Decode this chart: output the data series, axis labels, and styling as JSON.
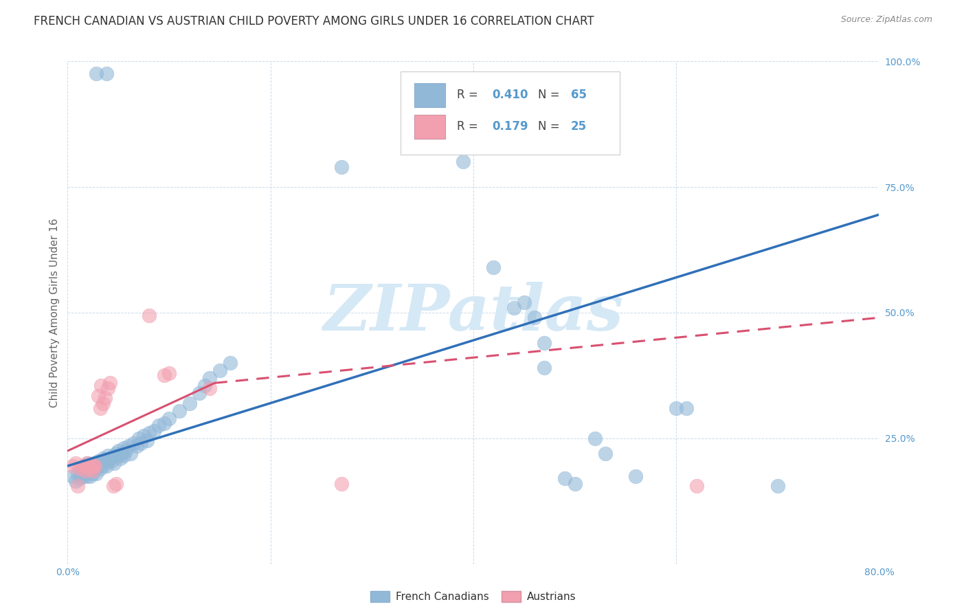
{
  "title": "FRENCH CANADIAN VS AUSTRIAN CHILD POVERTY AMONG GIRLS UNDER 16 CORRELATION CHART",
  "source": "Source: ZipAtlas.com",
  "ylabel": "Child Poverty Among Girls Under 16",
  "xlim": [
    0.0,
    0.8
  ],
  "ylim": [
    0.0,
    1.0
  ],
  "xticks": [
    0.0,
    0.2,
    0.4,
    0.6,
    0.8
  ],
  "xtick_labels": [
    "0.0%",
    "",
    "",
    "",
    "80.0%"
  ],
  "ytick_labels": [
    "",
    "25.0%",
    "50.0%",
    "75.0%",
    "100.0%"
  ],
  "yticks": [
    0.0,
    0.25,
    0.5,
    0.75,
    1.0
  ],
  "legend_label_blue": "French Canadians",
  "legend_label_pink": "Austrians",
  "blue_color": "#92b8d8",
  "pink_color": "#f2a0b0",
  "line_blue_color": "#3070b8",
  "line_pink_color": "#d85070",
  "title_color": "#333333",
  "axis_color": "#5599cc",
  "watermark": "ZIPatlas",
  "blue_points": [
    [
      0.005,
      0.175
    ],
    [
      0.008,
      0.165
    ],
    [
      0.01,
      0.18
    ],
    [
      0.012,
      0.17
    ],
    [
      0.013,
      0.185
    ],
    [
      0.015,
      0.175
    ],
    [
      0.015,
      0.19
    ],
    [
      0.017,
      0.18
    ],
    [
      0.018,
      0.19
    ],
    [
      0.019,
      0.175
    ],
    [
      0.02,
      0.185
    ],
    [
      0.02,
      0.2
    ],
    [
      0.022,
      0.175
    ],
    [
      0.022,
      0.185
    ],
    [
      0.023,
      0.195
    ],
    [
      0.025,
      0.18
    ],
    [
      0.025,
      0.19
    ],
    [
      0.026,
      0.2
    ],
    [
      0.027,
      0.19
    ],
    [
      0.028,
      0.18
    ],
    [
      0.03,
      0.195
    ],
    [
      0.03,
      0.205
    ],
    [
      0.032,
      0.19
    ],
    [
      0.033,
      0.2
    ],
    [
      0.035,
      0.195
    ],
    [
      0.035,
      0.21
    ],
    [
      0.037,
      0.205
    ],
    [
      0.038,
      0.195
    ],
    [
      0.04,
      0.205
    ],
    [
      0.04,
      0.215
    ],
    [
      0.042,
      0.21
    ],
    [
      0.043,
      0.205
    ],
    [
      0.045,
      0.215
    ],
    [
      0.046,
      0.2
    ],
    [
      0.048,
      0.22
    ],
    [
      0.05,
      0.215
    ],
    [
      0.05,
      0.225
    ],
    [
      0.052,
      0.21
    ],
    [
      0.053,
      0.22
    ],
    [
      0.055,
      0.215
    ],
    [
      0.055,
      0.23
    ],
    [
      0.057,
      0.225
    ],
    [
      0.06,
      0.235
    ],
    [
      0.062,
      0.22
    ],
    [
      0.065,
      0.24
    ],
    [
      0.068,
      0.235
    ],
    [
      0.07,
      0.25
    ],
    [
      0.072,
      0.24
    ],
    [
      0.075,
      0.255
    ],
    [
      0.078,
      0.245
    ],
    [
      0.08,
      0.26
    ],
    [
      0.085,
      0.265
    ],
    [
      0.09,
      0.275
    ],
    [
      0.095,
      0.28
    ],
    [
      0.1,
      0.29
    ],
    [
      0.11,
      0.305
    ],
    [
      0.12,
      0.32
    ],
    [
      0.13,
      0.34
    ],
    [
      0.135,
      0.355
    ],
    [
      0.14,
      0.37
    ],
    [
      0.15,
      0.385
    ],
    [
      0.16,
      0.4
    ],
    [
      0.028,
      0.975
    ],
    [
      0.038,
      0.975
    ],
    [
      0.27,
      0.79
    ],
    [
      0.39,
      0.8
    ],
    [
      0.42,
      0.59
    ],
    [
      0.44,
      0.51
    ],
    [
      0.45,
      0.52
    ],
    [
      0.46,
      0.49
    ],
    [
      0.47,
      0.44
    ],
    [
      0.47,
      0.39
    ],
    [
      0.49,
      0.17
    ],
    [
      0.5,
      0.16
    ],
    [
      0.52,
      0.25
    ],
    [
      0.53,
      0.22
    ],
    [
      0.56,
      0.175
    ],
    [
      0.6,
      0.31
    ],
    [
      0.61,
      0.31
    ],
    [
      0.7,
      0.155
    ]
  ],
  "pink_points": [
    [
      0.005,
      0.195
    ],
    [
      0.008,
      0.2
    ],
    [
      0.01,
      0.155
    ],
    [
      0.012,
      0.19
    ],
    [
      0.015,
      0.195
    ],
    [
      0.017,
      0.185
    ],
    [
      0.018,
      0.195
    ],
    [
      0.019,
      0.2
    ],
    [
      0.02,
      0.195
    ],
    [
      0.022,
      0.19
    ],
    [
      0.024,
      0.195
    ],
    [
      0.025,
      0.185
    ],
    [
      0.026,
      0.195
    ],
    [
      0.027,
      0.195
    ],
    [
      0.03,
      0.335
    ],
    [
      0.032,
      0.31
    ],
    [
      0.033,
      0.355
    ],
    [
      0.035,
      0.32
    ],
    [
      0.037,
      0.33
    ],
    [
      0.04,
      0.35
    ],
    [
      0.042,
      0.36
    ],
    [
      0.045,
      0.155
    ],
    [
      0.048,
      0.16
    ],
    [
      0.08,
      0.495
    ],
    [
      0.095,
      0.375
    ],
    [
      0.1,
      0.38
    ],
    [
      0.14,
      0.35
    ],
    [
      0.27,
      0.16
    ],
    [
      0.62,
      0.155
    ]
  ],
  "blue_line": [
    [
      0.0,
      0.195
    ],
    [
      0.8,
      0.695
    ]
  ],
  "pink_line_solid": [
    [
      0.0,
      0.225
    ],
    [
      0.145,
      0.36
    ]
  ],
  "pink_line_dashed": [
    [
      0.145,
      0.36
    ],
    [
      0.8,
      0.49
    ]
  ],
  "background_color": "#ffffff",
  "grid_color": "#c8daea",
  "watermark_color": "#d5e8f5",
  "title_fontsize": 12,
  "axis_label_fontsize": 11,
  "tick_fontsize": 10
}
